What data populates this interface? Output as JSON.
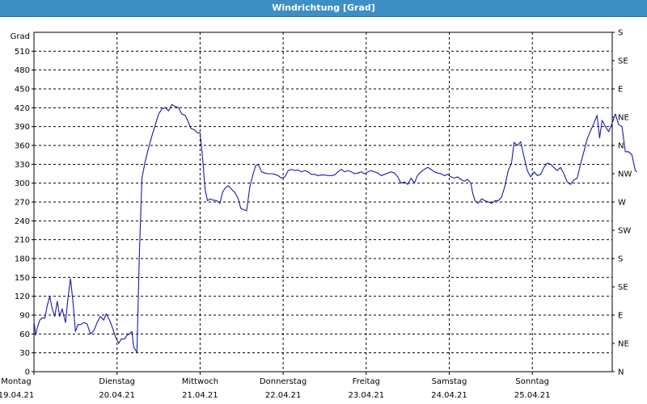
{
  "window": {
    "title": "Windrichtung [Grad]"
  },
  "chart_data": {
    "type": "line",
    "ylabel": "Grad",
    "ylim": [
      0,
      540
    ],
    "y_ticks": [
      0,
      30,
      60,
      90,
      120,
      150,
      180,
      210,
      240,
      270,
      300,
      330,
      360,
      390,
      420,
      450,
      480,
      510
    ],
    "right_axis_labels": [
      "N",
      "NE",
      "E",
      "SE",
      "S",
      "SW",
      "W",
      "NW",
      "N",
      "NE",
      "E",
      "SE",
      "S"
    ],
    "x_ticks": [
      {
        "day": "Montag",
        "date": "19.04.21"
      },
      {
        "day": "Dienstag",
        "date": "20.04.21"
      },
      {
        "day": "Mittwoch",
        "date": "21.04.21"
      },
      {
        "day": "Donnerstag",
        "date": "22.04.21"
      },
      {
        "day": "Freitag",
        "date": "23.04.21"
      },
      {
        "day": "Samstag",
        "date": "24.04.21"
      },
      {
        "day": "Sonntag",
        "date": "25.04.21"
      }
    ],
    "grid": true,
    "line_color": "#1a1aa8",
    "series": [
      {
        "x_unit": "days since Montag 19.04.21 00:00",
        "points": [
          [
            0.0,
            80
          ],
          [
            0.02,
            58
          ],
          [
            0.04,
            70
          ],
          [
            0.07,
            82
          ],
          [
            0.1,
            86
          ],
          [
            0.13,
            85
          ],
          [
            0.16,
            105
          ],
          [
            0.19,
            120
          ],
          [
            0.22,
            100
          ],
          [
            0.25,
            88
          ],
          [
            0.28,
            112
          ],
          [
            0.31,
            88
          ],
          [
            0.34,
            100
          ],
          [
            0.38,
            78
          ],
          [
            0.41,
            118
          ],
          [
            0.44,
            148
          ],
          [
            0.47,
            110
          ],
          [
            0.5,
            64
          ],
          [
            0.53,
            75
          ],
          [
            0.56,
            75
          ],
          [
            0.6,
            78
          ],
          [
            0.64,
            76
          ],
          [
            0.68,
            60
          ],
          [
            0.72,
            65
          ],
          [
            0.76,
            78
          ],
          [
            0.8,
            88
          ],
          [
            0.84,
            82
          ],
          [
            0.87,
            92
          ],
          [
            0.91,
            82
          ],
          [
            0.95,
            68
          ],
          [
            0.98,
            56
          ],
          [
            1.02,
            45
          ],
          [
            1.05,
            52
          ],
          [
            1.09,
            52
          ],
          [
            1.12,
            58
          ],
          [
            1.15,
            60
          ],
          [
            1.18,
            64
          ],
          [
            1.2,
            40
          ],
          [
            1.22,
            35
          ],
          [
            1.24,
            31
          ],
          [
            1.27,
            190
          ],
          [
            1.3,
            308
          ],
          [
            1.34,
            335
          ],
          [
            1.38,
            356
          ],
          [
            1.42,
            375
          ],
          [
            1.46,
            392
          ],
          [
            1.5,
            410
          ],
          [
            1.54,
            418
          ],
          [
            1.58,
            420
          ],
          [
            1.62,
            415
          ],
          [
            1.66,
            425
          ],
          [
            1.7,
            422
          ],
          [
            1.74,
            420
          ],
          [
            1.78,
            410
          ],
          [
            1.82,
            408
          ],
          [
            1.85,
            400
          ],
          [
            1.89,
            387
          ],
          [
            1.93,
            385
          ],
          [
            1.97,
            380
          ],
          [
            2.0,
            380
          ],
          [
            2.03,
            340
          ],
          [
            2.06,
            290
          ],
          [
            2.09,
            272
          ],
          [
            2.12,
            275
          ],
          [
            2.16,
            273
          ],
          [
            2.2,
            272
          ],
          [
            2.24,
            268
          ],
          [
            2.27,
            285
          ],
          [
            2.3,
            292
          ],
          [
            2.34,
            296
          ],
          [
            2.38,
            290
          ],
          [
            2.42,
            285
          ],
          [
            2.46,
            275
          ],
          [
            2.49,
            260
          ],
          [
            2.52,
            258
          ],
          [
            2.56,
            256
          ],
          [
            2.6,
            295
          ],
          [
            2.64,
            315
          ],
          [
            2.67,
            328
          ],
          [
            2.7,
            330
          ],
          [
            2.74,
            318
          ],
          [
            2.78,
            316
          ],
          [
            2.82,
            315
          ],
          [
            2.86,
            315
          ],
          [
            2.9,
            314
          ],
          [
            2.94,
            312
          ],
          [
            2.98,
            308
          ],
          [
            3.02,
            310
          ],
          [
            3.06,
            320
          ],
          [
            3.1,
            322
          ],
          [
            3.14,
            320
          ],
          [
            3.18,
            321
          ],
          [
            3.22,
            318
          ],
          [
            3.26,
            320
          ],
          [
            3.3,
            318
          ],
          [
            3.34,
            314
          ],
          [
            3.38,
            314
          ],
          [
            3.42,
            312
          ],
          [
            3.46,
            313
          ],
          [
            3.5,
            313
          ],
          [
            3.54,
            312
          ],
          [
            3.58,
            312
          ],
          [
            3.62,
            313
          ],
          [
            3.66,
            318
          ],
          [
            3.7,
            322
          ],
          [
            3.74,
            318
          ],
          [
            3.78,
            320
          ],
          [
            3.82,
            318
          ],
          [
            3.86,
            315
          ],
          [
            3.9,
            316
          ],
          [
            3.94,
            318
          ],
          [
            3.98,
            315
          ],
          [
            4.02,
            318
          ],
          [
            4.06,
            320
          ],
          [
            4.1,
            318
          ],
          [
            4.14,
            316
          ],
          [
            4.18,
            312
          ],
          [
            4.22,
            314
          ],
          [
            4.26,
            316
          ],
          [
            4.3,
            318
          ],
          [
            4.34,
            316
          ],
          [
            4.38,
            310
          ],
          [
            4.42,
            300
          ],
          [
            4.46,
            302
          ],
          [
            4.5,
            298
          ],
          [
            4.54,
            308
          ],
          [
            4.58,
            300
          ],
          [
            4.62,
            313
          ],
          [
            4.66,
            318
          ],
          [
            4.7,
            322
          ],
          [
            4.74,
            325
          ],
          [
            4.78,
            322
          ],
          [
            4.82,
            318
          ],
          [
            4.86,
            316
          ],
          [
            4.9,
            315
          ],
          [
            4.94,
            312
          ],
          [
            4.98,
            314
          ],
          [
            5.02,
            310
          ],
          [
            5.06,
            308
          ],
          [
            5.1,
            310
          ],
          [
            5.14,
            306
          ],
          [
            5.18,
            303
          ],
          [
            5.22,
            306
          ],
          [
            5.26,
            300
          ],
          [
            5.28,
            285
          ],
          [
            5.31,
            272
          ],
          [
            5.35,
            268
          ],
          [
            5.39,
            275
          ],
          [
            5.43,
            272
          ],
          [
            5.47,
            270
          ],
          [
            5.51,
            268
          ],
          [
            5.55,
            272
          ],
          [
            5.59,
            272
          ],
          [
            5.63,
            278
          ],
          [
            5.67,
            295
          ],
          [
            5.71,
            320
          ],
          [
            5.75,
            332
          ],
          [
            5.78,
            365
          ],
          [
            5.82,
            360
          ],
          [
            5.86,
            366
          ],
          [
            5.9,
            342
          ],
          [
            5.94,
            320
          ],
          [
            5.98,
            310
          ],
          [
            6.02,
            318
          ],
          [
            6.06,
            312
          ],
          [
            6.1,
            314
          ],
          [
            6.14,
            325
          ],
          [
            6.18,
            332
          ],
          [
            6.22,
            330
          ],
          [
            6.26,
            325
          ],
          [
            6.3,
            320
          ],
          [
            6.34,
            325
          ],
          [
            6.38,
            315
          ],
          [
            6.42,
            302
          ],
          [
            6.46,
            298
          ],
          [
            6.5,
            305
          ],
          [
            6.54,
            308
          ],
          [
            6.58,
            330
          ],
          [
            6.62,
            350
          ],
          [
            6.66,
            370
          ],
          [
            6.7,
            383
          ],
          [
            6.74,
            395
          ],
          [
            6.78,
            408
          ],
          [
            6.81,
            372
          ],
          [
            6.84,
            400
          ],
          [
            6.88,
            390
          ],
          [
            6.92,
            382
          ],
          [
            6.96,
            395
          ],
          [
            7.0,
            410
          ],
          [
            7.04,
            393
          ],
          [
            7.08,
            390
          ],
          [
            7.12,
            350
          ],
          [
            7.16,
            350
          ],
          [
            7.2,
            345
          ],
          [
            7.24,
            320
          ],
          [
            7.26,
            318
          ]
        ]
      }
    ]
  }
}
